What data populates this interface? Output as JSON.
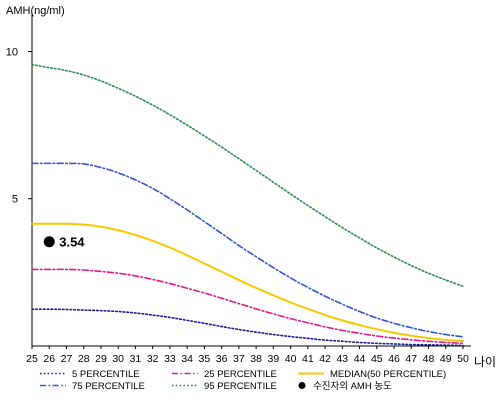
{
  "chart_data": {
    "type": "line",
    "ylabel": "AMH(ng/ml)",
    "xlabel": "나이",
    "xlim": [
      25,
      50
    ],
    "ylim": [
      0,
      11
    ],
    "x_ticks": [
      "25",
      "26",
      "27",
      "28",
      "29",
      "30",
      "31",
      "32",
      "33",
      "34",
      "35",
      "36",
      "37",
      "38",
      "39",
      "40",
      "41",
      "42",
      "43",
      "44",
      "45",
      "46",
      "47",
      "48",
      "49",
      "50"
    ],
    "y_ticks": [
      "5",
      "10"
    ],
    "grid": false,
    "legend_position": "bottom",
    "series": [
      {
        "name": "5 PERCENTILE",
        "color": "#1a1a8c",
        "style": "dotted",
        "points": [
          [
            25,
            1.25
          ],
          [
            26,
            1.25
          ],
          [
            27,
            1.24
          ],
          [
            28,
            1.22
          ],
          [
            29,
            1.2
          ],
          [
            30,
            1.17
          ],
          [
            31,
            1.12
          ],
          [
            32,
            1.05
          ],
          [
            33,
            0.97
          ],
          [
            34,
            0.87
          ],
          [
            35,
            0.77
          ],
          [
            36,
            0.66
          ],
          [
            37,
            0.56
          ],
          [
            38,
            0.47
          ],
          [
            39,
            0.39
          ],
          [
            40,
            0.32
          ],
          [
            41,
            0.26
          ],
          [
            42,
            0.2
          ],
          [
            43,
            0.16
          ],
          [
            44,
            0.12
          ],
          [
            45,
            0.09
          ],
          [
            46,
            0.07
          ],
          [
            47,
            0.05
          ],
          [
            48,
            0.04
          ],
          [
            49,
            0.03
          ],
          [
            50,
            0.02
          ]
        ]
      },
      {
        "name": "25 PERCENTILE",
        "color": "#e0198c",
        "style": "dashdot",
        "points": [
          [
            25,
            2.6
          ],
          [
            26,
            2.6
          ],
          [
            27,
            2.6
          ],
          [
            28,
            2.58
          ],
          [
            29,
            2.53
          ],
          [
            30,
            2.47
          ],
          [
            31,
            2.38
          ],
          [
            32,
            2.26
          ],
          [
            33,
            2.12
          ],
          [
            34,
            1.96
          ],
          [
            35,
            1.8
          ],
          [
            36,
            1.62
          ],
          [
            37,
            1.44
          ],
          [
            38,
            1.26
          ],
          [
            39,
            1.09
          ],
          [
            40,
            0.93
          ],
          [
            41,
            0.79
          ],
          [
            42,
            0.65
          ],
          [
            43,
            0.53
          ],
          [
            44,
            0.43
          ],
          [
            45,
            0.34
          ],
          [
            46,
            0.27
          ],
          [
            47,
            0.21
          ],
          [
            48,
            0.16
          ],
          [
            49,
            0.12
          ],
          [
            50,
            0.09
          ]
        ]
      },
      {
        "name": "MEDIAN(50 PERCENTILE)",
        "color": "#f5c800",
        "style": "solid",
        "points": [
          [
            25,
            4.15
          ],
          [
            26,
            4.15
          ],
          [
            27,
            4.15
          ],
          [
            28,
            4.12
          ],
          [
            29,
            4.05
          ],
          [
            30,
            3.93
          ],
          [
            31,
            3.77
          ],
          [
            32,
            3.57
          ],
          [
            33,
            3.34
          ],
          [
            34,
            3.08
          ],
          [
            35,
            2.8
          ],
          [
            36,
            2.52
          ],
          [
            37,
            2.24
          ],
          [
            38,
            1.97
          ],
          [
            39,
            1.72
          ],
          [
            40,
            1.48
          ],
          [
            41,
            1.26
          ],
          [
            42,
            1.05
          ],
          [
            43,
            0.87
          ],
          [
            44,
            0.71
          ],
          [
            45,
            0.57
          ],
          [
            46,
            0.45
          ],
          [
            47,
            0.35
          ],
          [
            48,
            0.27
          ],
          [
            49,
            0.21
          ],
          [
            50,
            0.17
          ]
        ]
      },
      {
        "name": "75 PERCENTILE",
        "color": "#3355cc",
        "style": "dashdot",
        "points": [
          [
            25,
            6.2
          ],
          [
            26,
            6.2
          ],
          [
            27,
            6.2
          ],
          [
            28,
            6.18
          ],
          [
            29,
            6.06
          ],
          [
            30,
            5.88
          ],
          [
            31,
            5.64
          ],
          [
            32,
            5.35
          ],
          [
            33,
            5.0
          ],
          [
            34,
            4.62
          ],
          [
            35,
            4.22
          ],
          [
            36,
            3.82
          ],
          [
            37,
            3.41
          ],
          [
            38,
            3.03
          ],
          [
            39,
            2.66
          ],
          [
            40,
            2.31
          ],
          [
            41,
            1.99
          ],
          [
            42,
            1.69
          ],
          [
            43,
            1.42
          ],
          [
            44,
            1.17
          ],
          [
            45,
            0.95
          ],
          [
            46,
            0.77
          ],
          [
            47,
            0.62
          ],
          [
            48,
            0.49
          ],
          [
            49,
            0.39
          ],
          [
            50,
            0.31
          ]
        ]
      },
      {
        "name": "95 PERCENTILE",
        "color": "#2e8b57",
        "style": "dotted",
        "points": [
          [
            25,
            9.55
          ],
          [
            26,
            9.45
          ],
          [
            27,
            9.35
          ],
          [
            28,
            9.2
          ],
          [
            29,
            9.0
          ],
          [
            30,
            8.75
          ],
          [
            31,
            8.48
          ],
          [
            32,
            8.18
          ],
          [
            33,
            7.85
          ],
          [
            34,
            7.5
          ],
          [
            35,
            7.13
          ],
          [
            36,
            6.75
          ],
          [
            37,
            6.36
          ],
          [
            38,
            5.96
          ],
          [
            39,
            5.56
          ],
          [
            40,
            5.16
          ],
          [
            41,
            4.77
          ],
          [
            42,
            4.39
          ],
          [
            43,
            4.02
          ],
          [
            44,
            3.67
          ],
          [
            45,
            3.33
          ],
          [
            46,
            3.02
          ],
          [
            47,
            2.73
          ],
          [
            48,
            2.47
          ],
          [
            49,
            2.24
          ],
          [
            50,
            2.03
          ]
        ]
      }
    ],
    "marker": {
      "name": "수진자의 AMH 농도",
      "x": 26,
      "y": 3.54,
      "label": "3.54",
      "color": "#000000"
    },
    "legend": [
      {
        "label": "5 PERCENTILE",
        "series": 0
      },
      {
        "label": "25 PERCENTILE",
        "series": 1
      },
      {
        "label": "MEDIAN(50 PERCENTILE)",
        "series": 2
      },
      {
        "label": "75 PERCENTILE",
        "series": 3
      },
      {
        "label": "95 PERCENTILE",
        "series": 4
      },
      {
        "label": "수진자의 AMH 농도",
        "series": "marker"
      }
    ]
  }
}
